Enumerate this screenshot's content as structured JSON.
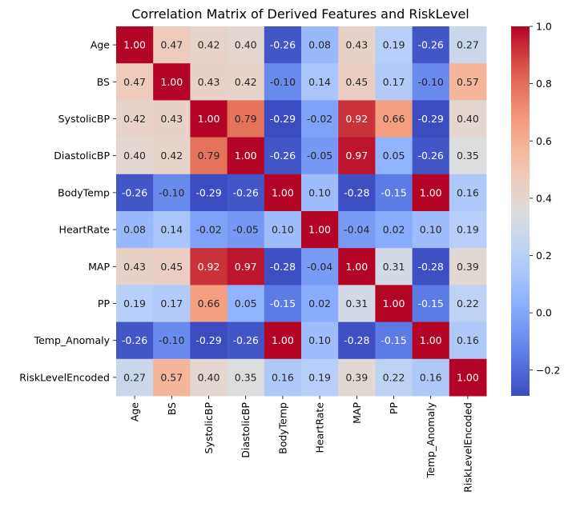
{
  "chart_data": {
    "type": "heatmap",
    "title": "Correlation Matrix of Derived Features and RiskLevel",
    "variables": [
      "Age",
      "BS",
      "SystolicBP",
      "DiastolicBP",
      "BodyTemp",
      "HeartRate",
      "MAP",
      "PP",
      "Temp_Anomaly",
      "RiskLevelEncoded"
    ],
    "values": [
      [
        1.0,
        0.47,
        0.42,
        0.4,
        -0.26,
        0.08,
        0.43,
        0.19,
        -0.26,
        0.27
      ],
      [
        0.47,
        1.0,
        0.43,
        0.42,
        -0.1,
        0.14,
        0.45,
        0.17,
        -0.1,
        0.57
      ],
      [
        0.42,
        0.43,
        1.0,
        0.79,
        -0.29,
        -0.02,
        0.92,
        0.66,
        -0.29,
        0.4
      ],
      [
        0.4,
        0.42,
        0.79,
        1.0,
        -0.26,
        -0.05,
        0.97,
        0.05,
        -0.26,
        0.35
      ],
      [
        -0.26,
        -0.1,
        -0.29,
        -0.26,
        1.0,
        0.1,
        -0.28,
        -0.15,
        1.0,
        0.16
      ],
      [
        0.08,
        0.14,
        -0.02,
        -0.05,
        0.1,
        1.0,
        -0.04,
        0.02,
        0.1,
        0.19
      ],
      [
        0.43,
        0.45,
        0.92,
        0.97,
        -0.28,
        -0.04,
        1.0,
        0.31,
        -0.28,
        0.39
      ],
      [
        0.19,
        0.17,
        0.66,
        0.05,
        -0.15,
        0.02,
        0.31,
        1.0,
        -0.15,
        0.22
      ],
      [
        -0.26,
        -0.1,
        -0.29,
        -0.26,
        1.0,
        0.1,
        -0.28,
        -0.15,
        1.0,
        0.16
      ],
      [
        0.27,
        0.57,
        0.4,
        0.35,
        0.16,
        0.19,
        0.39,
        0.22,
        0.16,
        1.0
      ]
    ],
    "colormap": "coolwarm",
    "vmin": -0.29,
    "vmax": 1.0,
    "colorbar_ticks": [
      1.0,
      0.8,
      0.6,
      0.4,
      0.2,
      0.0,
      -0.2
    ],
    "colorbar_tick_labels": [
      "1.0",
      "0.8",
      "0.6",
      "0.4",
      "0.2",
      "0.0",
      "−0.2"
    ],
    "legend_placement": "right",
    "grid": false
  }
}
